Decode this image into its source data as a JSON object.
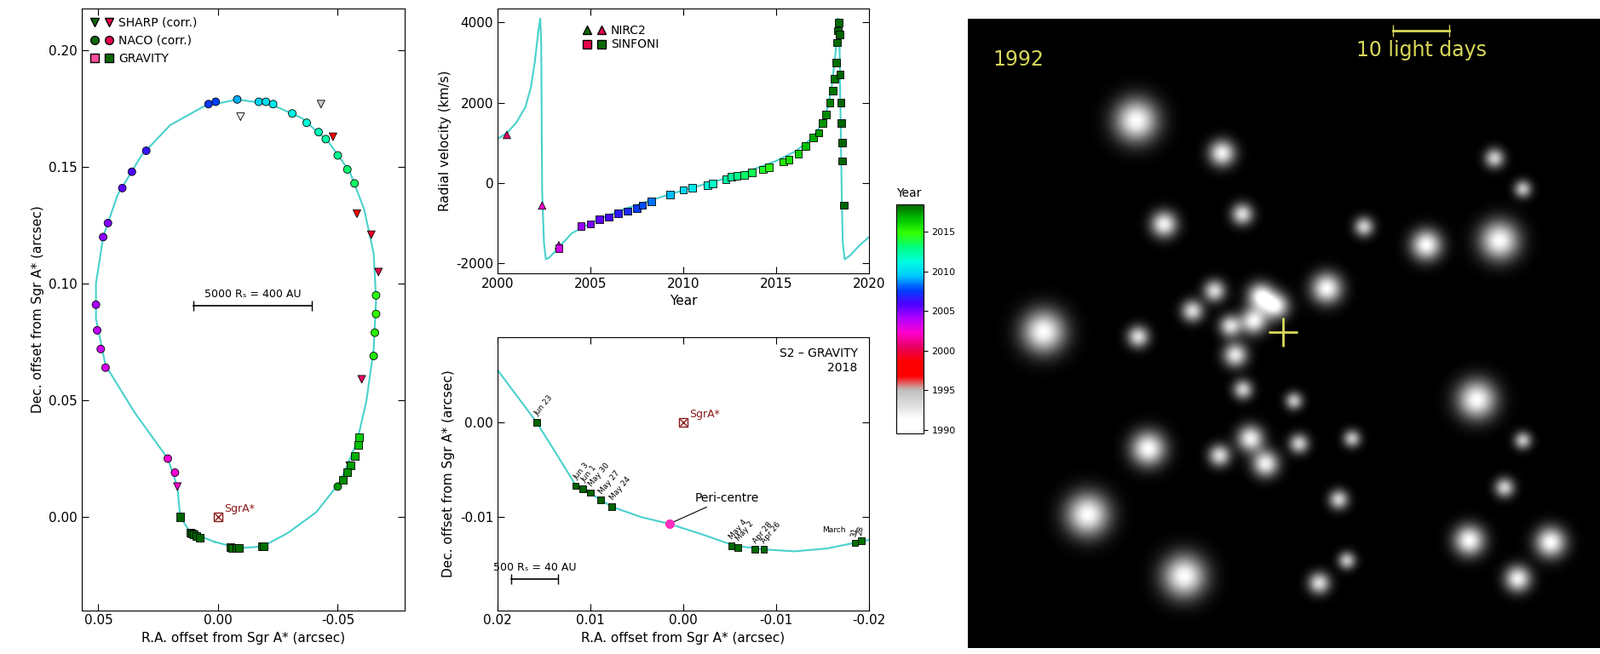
{
  "chart_data": [
    {
      "type": "scatter",
      "xlabel": "R.A. offset from Sgr A* (arcsec)",
      "ylabel": "Dec. offset from Sgr A* (arcsec)",
      "xlim": [
        0.057,
        -0.078
      ],
      "ylim": [
        -0.04,
        0.218
      ],
      "xticks": [
        0.05,
        {
          "value": 0.0,
          "label": "0.00"
        },
        -0.05
      ],
      "yticks": [
        {
          "value": 0.0,
          "label": "0.00"
        },
        0.05,
        {
          "value": 0.1,
          "label": "0.10"
        },
        0.15,
        {
          "value": 0.2,
          "label": "0.20"
        }
      ],
      "legend": "upper left",
      "model": {
        "color": "#48d1cc",
        "x": [
          0.0015,
          0.0116,
          0.0158,
          0.017,
          0.021,
          0.035,
          0.047,
          0.051,
          0.051,
          0.048,
          0.042,
          0.032,
          0.02,
          0.006,
          -0.008,
          -0.022,
          -0.035,
          -0.046,
          -0.055,
          -0.061,
          -0.065,
          -0.066,
          -0.065,
          -0.062,
          -0.058,
          -0.051,
          -0.041,
          -0.029,
          -0.0185,
          -0.0087,
          0.0015
        ],
        "y": [
          -0.0107,
          -0.0066,
          0.0,
          0.013,
          0.025,
          0.045,
          0.065,
          0.085,
          0.1,
          0.12,
          0.138,
          0.155,
          0.168,
          0.176,
          0.179,
          0.177,
          0.171,
          0.161,
          0.148,
          0.132,
          0.113,
          0.093,
          0.072,
          0.05,
          0.032,
          0.015,
          0.002,
          -0.007,
          -0.0127,
          -0.0134,
          -0.0107
        ]
      },
      "series": [
        {
          "name": "SHARP (corr.)",
          "marker": "triangle_down",
          "colors": [
            "#0a6a0a",
            "#e8004a"
          ],
          "x": [
            -0.0094,
            -0.043,
            -0.048,
            -0.058,
            -0.064,
            -0.067,
            -0.06,
            -0.055,
            0.017
          ],
          "y": [
            0.1716,
            0.177,
            0.163,
            0.13,
            0.121,
            0.105,
            0.059,
            0.022,
            0.013
          ],
          "year": [
            1992.2,
            1994.3,
            1997.3,
            1998.3,
            1999.3,
            2000.0,
            2000.5,
            2001.3,
            2002.3
          ]
        },
        {
          "name": "NACO (corr.)",
          "marker": "circle",
          "colors": [
            "#0a6a0a",
            "#e8004a"
          ],
          "x": [
            0.021,
            0.018,
            0.047,
            0.049,
            0.0505,
            0.051,
            0.048,
            0.046,
            0.04,
            0.036,
            0.03,
            0.004,
            0.001,
            -0.008,
            -0.017,
            -0.02,
            -0.023,
            -0.031,
            -0.037,
            -0.042,
            -0.045,
            -0.05,
            -0.054,
            -0.057,
            -0.066,
            -0.066,
            -0.0655,
            -0.065,
            -0.05
          ],
          "y": [
            0.025,
            0.019,
            0.064,
            0.072,
            0.08,
            0.091,
            0.12,
            0.126,
            0.141,
            0.148,
            0.157,
            0.177,
            0.178,
            0.179,
            0.178,
            0.178,
            0.177,
            0.173,
            0.169,
            0.165,
            0.162,
            0.155,
            0.149,
            0.143,
            0.095,
            0.087,
            0.079,
            0.069,
            0.013
          ],
          "year": [
            2002.5,
            2002.4,
            2003.3,
            2003.5,
            2003.7,
            2004.2,
            2004.7,
            2005.0,
            2005.5,
            2006.0,
            2006.4,
            2007.3,
            2007.6,
            2009.0,
            2009.8,
            2010.2,
            2010.5,
            2011.0,
            2011.4,
            2012.0,
            2012.3,
            2012.7,
            2013.2,
            2013.5,
            2014.6,
            2014.9,
            2015.2,
            2015.5,
            2017.4
          ]
        },
        {
          "name": "GRAVITY",
          "marker": "square",
          "colors": [
            "#ff4f9f",
            "#0a6a0a"
          ],
          "x": [
            -0.059,
            -0.0585,
            -0.057,
            -0.0555,
            -0.054,
            -0.052,
            0.0158,
            0.0116,
            0.0108,
            0.01,
            0.0089,
            0.0077,
            -0.0052,
            -0.0059,
            -0.0077,
            -0.0087,
            -0.0185,
            -0.0192
          ],
          "y": [
            0.034,
            0.031,
            0.026,
            0.022,
            0.019,
            0.016,
            0.0,
            -0.0067,
            -0.007,
            -0.0074,
            -0.0082,
            -0.0089,
            -0.013,
            -0.0132,
            -0.0134,
            -0.0134,
            -0.0127,
            -0.0125
          ],
          "year": [
            2016.3,
            2016.6,
            2017.0,
            2017.3,
            2017.5,
            2017.7,
            2018.48,
            2018.42,
            2018.42,
            2018.41,
            2018.4,
            2018.39,
            2018.34,
            2018.33,
            2018.32,
            2018.32,
            2018.25,
            2018.24
          ]
        }
      ],
      "annotations": [
        {
          "text": "SgrA*",
          "x": 0.0,
          "y": 0.0,
          "color": "#8b1a1a"
        }
      ],
      "scale_bar": {
        "label": "5000 Rₛ = 400 AU",
        "x": [
          0.0103,
          -0.0393
        ],
        "y": 0.0906
      }
    },
    {
      "type": "scatter",
      "xlabel": "Year",
      "ylabel": "Radial velocity (km/s)",
      "xlim": [
        2000,
        2020
      ],
      "ylim": [
        -2250,
        4350
      ],
      "xticks": [
        2000,
        2005,
        2010,
        2015,
        2020
      ],
      "yticks": [
        -2000,
        0,
        2000,
        4000
      ],
      "legend": "upper left",
      "model": {
        "color": "#48d1cc",
        "x": [
          2000,
          2000.5,
          2001,
          2001.5,
          2001.8,
          2002.0,
          2002.2,
          2002.3,
          2002.35,
          2002.4,
          2002.5,
          2002.6,
          2002.8,
          2003,
          2003.5,
          2004,
          2005,
          2006,
          2007,
          2008,
          2009,
          2010,
          2011,
          2012,
          2013,
          2014,
          2015,
          2016,
          2016.5,
          2017,
          2017.5,
          2017.8,
          2018.0,
          2018.2,
          2018.3,
          2018.36,
          2018.42,
          2018.5,
          2018.55,
          2018.6,
          2018.7,
          2019,
          2019.5,
          2020
        ],
        "y": [
          1100,
          1250,
          1500,
          1900,
          2400,
          3000,
          3800,
          4100,
          3500,
          -200,
          -1500,
          -1900,
          -1850,
          -1750,
          -1500,
          -1250,
          -1000,
          -800,
          -620,
          -470,
          -320,
          -180,
          -50,
          80,
          220,
          380,
          550,
          780,
          950,
          1150,
          1500,
          1900,
          2400,
          3200,
          3800,
          4100,
          3500,
          1000,
          -500,
          -1500,
          -1900,
          -1800,
          -1550,
          -1350
        ]
      },
      "series": [
        {
          "name": "NIRC2",
          "marker": "triangle",
          "colors": [
            "#0a6a0a",
            "#e8004a"
          ],
          "x": [
            2000.5,
            2002.4,
            2003.3
          ],
          "y": [
            1200,
            -560,
            -1550
          ]
        },
        {
          "name": "SINFONI",
          "marker": "square",
          "colors": [
            "#e8004a",
            "#0a6a0a"
          ],
          "x": [
            2003.3,
            2004.5,
            2005.0,
            2005.5,
            2006.0,
            2006.5,
            2007.0,
            2007.5,
            2007.8,
            2008.3,
            2009.3,
            2010.0,
            2010.5,
            2011.3,
            2011.6,
            2012.3,
            2012.6,
            2012.9,
            2013.3,
            2013.7,
            2014.3,
            2014.6,
            2015.4,
            2015.7,
            2016.2,
            2016.6,
            2017.0,
            2017.3,
            2017.5,
            2017.7,
            2017.9,
            2018.05,
            2018.15,
            2018.25,
            2018.3,
            2018.35,
            2018.38,
            2018.42,
            2018.45,
            2018.5,
            2018.52,
            2018.55,
            2018.58,
            2018.65
          ],
          "y": [
            -1620,
            -1070,
            -1020,
            -900,
            -850,
            -750,
            -700,
            -620,
            -550,
            -460,
            -280,
            -170,
            -120,
            -60,
            -10,
            100,
            160,
            180,
            200,
            260,
            340,
            390,
            530,
            590,
            730,
            920,
            1130,
            1250,
            1500,
            1700,
            2000,
            2300,
            2600,
            3000,
            3500,
            3800,
            4000,
            3700,
            2700,
            2000,
            1500,
            1000,
            550,
            -550
          ]
        }
      ]
    },
    {
      "type": "scatter",
      "title": "S2 – GRAVITY\n2018",
      "xlabel": "R.A. offset from Sgr A* (arcsec)",
      "ylabel": "Dec. offset from Sgr A* (arcsec)",
      "xlim": [
        0.02,
        -0.02
      ],
      "ylim": [
        -0.0198,
        0.009
      ],
      "xticks": [
        0.02,
        0.01,
        {
          "value": 0.0,
          "label": "0.00"
        },
        -0.01,
        -0.02
      ],
      "yticks": [
        -0.01,
        {
          "value": 0.0,
          "label": "0.00"
        }
      ],
      "model": {
        "color": "#48d1cc",
        "x": [
          0.02,
          0.0158,
          0.0135,
          0.0116,
          0.01,
          0.0077,
          0.0045,
          0.0015,
          -0.002,
          -0.0055,
          -0.0087,
          -0.012,
          -0.0155,
          -0.0185,
          -0.02
        ],
        "y": [
          0.0055,
          0.0,
          -0.0036,
          -0.0066,
          -0.0075,
          -0.0089,
          -0.01,
          -0.0107,
          -0.0118,
          -0.013,
          -0.0134,
          -0.0136,
          -0.0133,
          -0.0127,
          -0.0124
        ]
      },
      "series": [
        {
          "marker": "square",
          "x": [
            0.0158,
            0.0116,
            0.0108,
            0.01,
            0.0089,
            0.0077,
            -0.0052,
            -0.0059,
            -0.0077,
            -0.0087,
            -0.0185,
            -0.0192
          ],
          "y": [
            0.0,
            -0.0067,
            -0.007,
            -0.0074,
            -0.0082,
            -0.0089,
            -0.013,
            -0.0132,
            -0.0134,
            -0.0134,
            -0.0127,
            -0.0125
          ],
          "year": [
            2018.48,
            2018.42,
            2018.42,
            2018.41,
            2018.4,
            2018.39,
            2018.34,
            2018.33,
            2018.32,
            2018.32,
            2018.25,
            2018.24
          ],
          "labels": [
            "Jun 23",
            "Jun 3",
            "Jun 1",
            "May 30",
            "May 27",
            "May 24",
            "May 4",
            "May 2",
            "Apr 28",
            "Apr 26",
            "31",
            "28"
          ]
        }
      ],
      "annotations": [
        {
          "text": "SgrA*",
          "x": 0.0,
          "y": 0.0,
          "color": "#8b1a1a"
        },
        {
          "text": "Peri-centre",
          "x": 0.0015,
          "y": -0.0107,
          "color": "#ff2fbf"
        },
        {
          "text": "March",
          "x": -0.0175,
          "y": -0.0118,
          "color": "#000000"
        }
      ],
      "scale_bar": {
        "label": "500 Rₛ = 40 AU",
        "x": [
          0.0185,
          0.0135
        ],
        "y": -0.0165
      }
    },
    {
      "type": "colorbar",
      "label": "Year",
      "range": [
        1989.5,
        2018.5
      ],
      "ticks": [
        1990,
        1995,
        2000,
        2005,
        2010,
        2015
      ],
      "colors": [
        "#ffffff",
        "#ffffff",
        "#dcdcdc",
        "#c0c0c0",
        "#ff0000",
        "#ff0000",
        "#e6005c",
        "#ff00cc",
        "#b400ff",
        "#5000ff",
        "#0040ff",
        "#00c8ff",
        "#00ffe0",
        "#00ff80",
        "#33ff00",
        "#00c000",
        "#006400"
      ]
    },
    {
      "type": "image",
      "tick_labels": false,
      "color": "#d8d85a",
      "label": "1992",
      "scale_bar": {
        "label": "10 light days",
        "x": [
          67.3,
          76.1
        ],
        "y": 1.9
      },
      "cross": [
        49.8,
        49.8
      ],
      "stars": [
        [
          26.6,
          16.2,
          1.0
        ],
        [
          40.2,
          21.4,
          0.6
        ],
        [
          83.4,
          22.2,
          0.45
        ],
        [
          87.9,
          27.1,
          0.4
        ],
        [
          31.0,
          32.7,
          0.6
        ],
        [
          43.4,
          31.1,
          0.5
        ],
        [
          62.7,
          33.1,
          0.45
        ],
        [
          72.6,
          36.0,
          0.7
        ],
        [
          84.2,
          35.3,
          0.9
        ],
        [
          39.0,
          43.3,
          0.5
        ],
        [
          35.5,
          46.5,
          0.5
        ],
        [
          46.3,
          44.1,
          0.6
        ],
        [
          48.7,
          45.7,
          0.6
        ],
        [
          45.2,
          48.1,
          0.6
        ],
        [
          56.8,
          42.9,
          0.7
        ],
        [
          11.9,
          49.8,
          1.0
        ],
        [
          26.9,
          50.6,
          0.5
        ],
        [
          41.5,
          48.9,
          0.5
        ],
        [
          42.3,
          53.5,
          0.55
        ],
        [
          43.5,
          59.0,
          0.45
        ],
        [
          51.6,
          60.8,
          0.4
        ],
        [
          80.6,
          60.6,
          0.9
        ],
        [
          44.7,
          66.8,
          0.6
        ],
        [
          47.1,
          70.8,
          0.6
        ],
        [
          39.8,
          69.5,
          0.5
        ],
        [
          52.4,
          67.6,
          0.45
        ],
        [
          60.8,
          66.8,
          0.4
        ],
        [
          87.9,
          67.1,
          0.4
        ],
        [
          28.5,
          68.4,
          0.8
        ],
        [
          18.9,
          78.9,
          1.0
        ],
        [
          58.7,
          76.5,
          0.45
        ],
        [
          85.0,
          74.6,
          0.45
        ],
        [
          79.4,
          83.0,
          0.7
        ],
        [
          92.3,
          83.3,
          0.7
        ],
        [
          34.2,
          88.7,
          1.0
        ],
        [
          60.0,
          86.2,
          0.4
        ],
        [
          55.6,
          89.8,
          0.5
        ],
        [
          87.1,
          89.1,
          0.6
        ]
      ]
    }
  ]
}
